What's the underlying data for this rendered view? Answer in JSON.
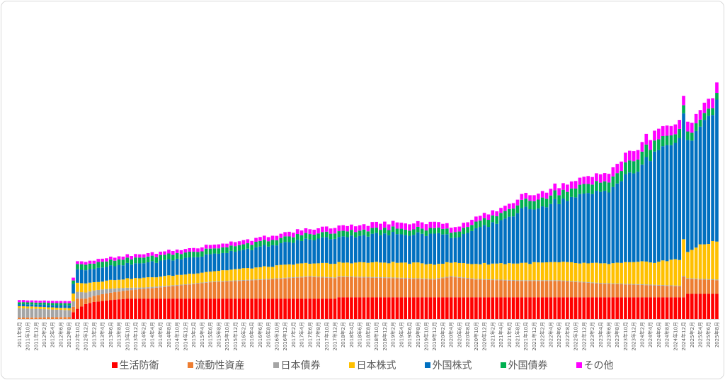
{
  "chart_data": {
    "type": "bar",
    "stacked": true,
    "title": "",
    "xlabel": "",
    "ylabel": "",
    "grid": false,
    "legend_position": "bottom",
    "start": [
      2011,
      8
    ],
    "months": 169,
    "tick_every": 2,
    "tick_format": "{y}年{m}月",
    "ylim": [
      0,
      380
    ],
    "series": [
      {
        "name": "生活防衛",
        "color": "#FF0000",
        "keys": [
          [
            0,
            0
          ],
          [
            12,
            0
          ],
          [
            13,
            10
          ],
          [
            14,
            15
          ],
          [
            16,
            22
          ],
          [
            18,
            25
          ],
          [
            22,
            28
          ],
          [
            26,
            30
          ],
          [
            76,
            30
          ],
          [
            77,
            32
          ],
          [
            160,
            32
          ],
          [
            161,
            37
          ],
          [
            168,
            37
          ]
        ]
      },
      {
        "name": "流動性資産",
        "color": "#ED7D31",
        "keys": [
          [
            0,
            2
          ],
          [
            12,
            3
          ],
          [
            13,
            8
          ],
          [
            14,
            15
          ],
          [
            16,
            8
          ],
          [
            20,
            10
          ],
          [
            26,
            12
          ],
          [
            40,
            20
          ],
          [
            46,
            24
          ],
          [
            60,
            28
          ],
          [
            70,
            32
          ],
          [
            76,
            30
          ],
          [
            90,
            28
          ],
          [
            100,
            26
          ],
          [
            104,
            30
          ],
          [
            110,
            26
          ],
          [
            120,
            24
          ],
          [
            130,
            24
          ],
          [
            140,
            20
          ],
          [
            150,
            18
          ],
          [
            159,
            16
          ],
          [
            160,
            30
          ],
          [
            161,
            22
          ],
          [
            168,
            20
          ]
        ]
      },
      {
        "name": "日本債券",
        "color": "#A5A5A5",
        "keys": [
          [
            0,
            14
          ],
          [
            12,
            10
          ],
          [
            13,
            8
          ],
          [
            14,
            10
          ],
          [
            18,
            8
          ],
          [
            24,
            5
          ],
          [
            30,
            2
          ],
          [
            40,
            1
          ],
          [
            60,
            1
          ],
          [
            168,
            1
          ]
        ]
      },
      {
        "name": "日本株式",
        "color": "#FFC000",
        "keys": [
          [
            0,
            3
          ],
          [
            12,
            3
          ],
          [
            13,
            12
          ],
          [
            14,
            14
          ],
          [
            20,
            12
          ],
          [
            30,
            14
          ],
          [
            46,
            15
          ],
          [
            60,
            18
          ],
          [
            76,
            20
          ],
          [
            90,
            22
          ],
          [
            100,
            22
          ],
          [
            104,
            20
          ],
          [
            110,
            22
          ],
          [
            120,
            25
          ],
          [
            130,
            26
          ],
          [
            140,
            28
          ],
          [
            150,
            32
          ],
          [
            159,
            38
          ],
          [
            160,
            55
          ],
          [
            161,
            40
          ],
          [
            168,
            58
          ]
        ]
      },
      {
        "name": "外国株式",
        "color": "#0070C0",
        "keys": [
          [
            0,
            3
          ],
          [
            12,
            4
          ],
          [
            13,
            15
          ],
          [
            14,
            20
          ],
          [
            20,
            20
          ],
          [
            30,
            22
          ],
          [
            46,
            25
          ],
          [
            60,
            30
          ],
          [
            76,
            38
          ],
          [
            90,
            42
          ],
          [
            100,
            44
          ],
          [
            102,
            45
          ],
          [
            104,
            35
          ],
          [
            110,
            50
          ],
          [
            114,
            58
          ],
          [
            120,
            75
          ],
          [
            130,
            90
          ],
          [
            140,
            105
          ],
          [
            145,
            120
          ],
          [
            150,
            140
          ],
          [
            154,
            165
          ],
          [
            159,
            180
          ],
          [
            160,
            175
          ],
          [
            164,
            165
          ],
          [
            168,
            200
          ]
        ]
      },
      {
        "name": "外国債券",
        "color": "#00B050",
        "keys": [
          [
            0,
            3
          ],
          [
            12,
            3
          ],
          [
            13,
            5
          ],
          [
            14,
            8
          ],
          [
            30,
            8
          ],
          [
            60,
            8
          ],
          [
            76,
            8
          ],
          [
            100,
            8
          ],
          [
            104,
            8
          ],
          [
            120,
            12
          ],
          [
            140,
            14
          ],
          [
            150,
            18
          ],
          [
            160,
            12
          ],
          [
            168,
            10
          ]
        ]
      },
      {
        "name": "その他",
        "color": "#FF00FF",
        "keys": [
          [
            0,
            3
          ],
          [
            12,
            3
          ],
          [
            13,
            4
          ],
          [
            30,
            5
          ],
          [
            60,
            6
          ],
          [
            76,
            8
          ],
          [
            100,
            9
          ],
          [
            104,
            7
          ],
          [
            120,
            8
          ],
          [
            140,
            12
          ],
          [
            150,
            15
          ],
          [
            160,
            14
          ],
          [
            168,
            15
          ]
        ]
      }
    ]
  },
  "legend": [
    {
      "label": "生活防衛",
      "color": "#FF0000"
    },
    {
      "label": "流動性資産",
      "color": "#ED7D31"
    },
    {
      "label": "日本債券",
      "color": "#A5A5A5"
    },
    {
      "label": "日本株式",
      "color": "#FFC000"
    },
    {
      "label": "外国株式",
      "color": "#0070C0"
    },
    {
      "label": "外国債券",
      "color": "#00B050"
    },
    {
      "label": "その他",
      "color": "#FF00FF"
    }
  ]
}
